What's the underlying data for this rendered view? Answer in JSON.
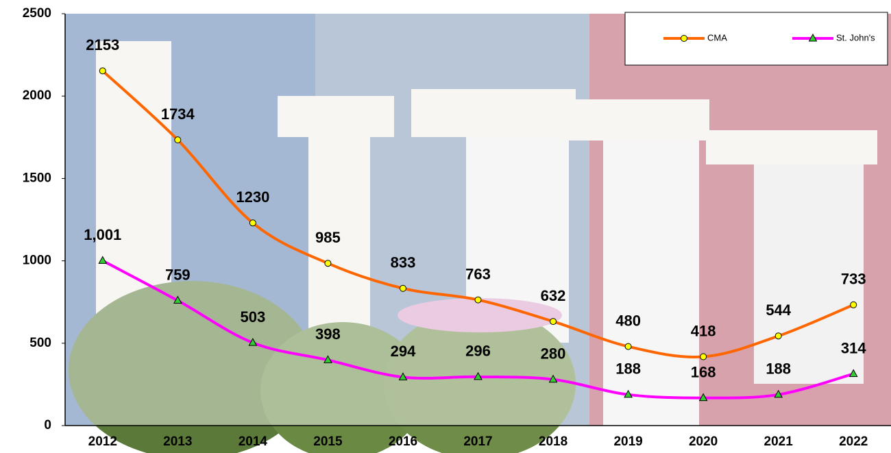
{
  "chart_data": {
    "type": "line",
    "categories": [
      "2012",
      "2013",
      "2014",
      "2015",
      "2016",
      "2017",
      "2018",
      "2019",
      "2020",
      "2021",
      "2022"
    ],
    "series": [
      {
        "name": "CMA",
        "color": "#ff6600",
        "marker": "circle",
        "marker_color": "#ffff00",
        "values": [
          2153,
          1734,
          1230,
          985,
          833,
          763,
          632,
          480,
          418,
          544,
          733
        ]
      },
      {
        "name": "St. John's",
        "color": "#ff00ff",
        "marker": "triangle",
        "marker_color": "#33cc33",
        "values": [
          1001,
          759,
          503,
          398,
          294,
          296,
          280,
          188,
          168,
          188,
          314
        ],
        "value_labels": [
          "1,001",
          "759",
          "503",
          "398",
          "294",
          "296",
          "280",
          "188",
          "168",
          "188",
          "314"
        ]
      }
    ],
    "ylim": [
      0,
      2500
    ],
    "yticks": [
      0,
      500,
      1000,
      1500,
      2000,
      2500
    ],
    "smooth": true,
    "legend": "top-right"
  }
}
